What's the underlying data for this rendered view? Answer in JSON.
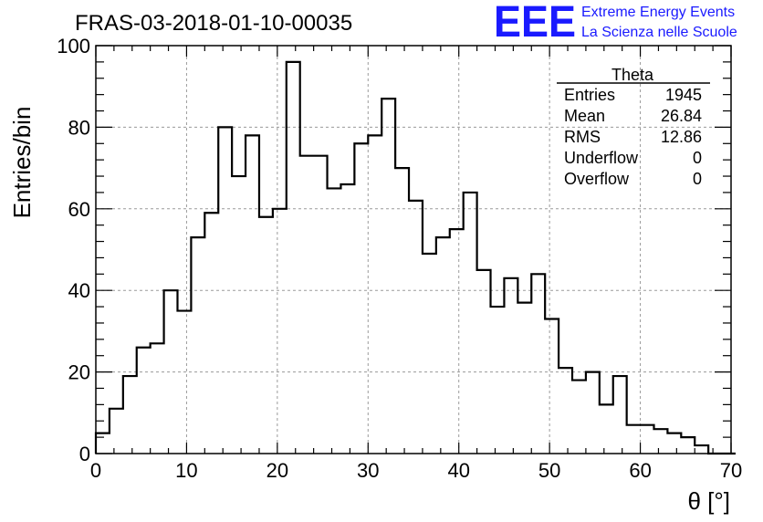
{
  "title": "FRAS-03-2018-01-10-00035",
  "logo": {
    "mark": "EEE",
    "line1": "Extreme Energy Events",
    "line2": "La Scienza nelle Scuole",
    "color": "#1a1aff"
  },
  "stats": {
    "name": "Theta",
    "rows": [
      {
        "label": "Entries",
        "value": "1945"
      },
      {
        "label": "Mean",
        "value": "26.84"
      },
      {
        "label": "RMS",
        "value": "12.86"
      },
      {
        "label": "Underflow",
        "value": "0"
      },
      {
        "label": "Overflow",
        "value": "0"
      }
    ]
  },
  "chart_data": {
    "type": "histogram",
    "title": "FRAS-03-2018-01-10-00035",
    "xlabel": "θ [°]",
    "ylabel": "Entries/bin",
    "xlim": [
      0,
      70
    ],
    "ylim": [
      0,
      100
    ],
    "xticks": [
      0,
      10,
      20,
      30,
      40,
      50,
      60,
      70
    ],
    "yticks": [
      0,
      20,
      40,
      60,
      80,
      100
    ],
    "grid": true,
    "bin_width": 1.5,
    "bin_edges_start": 0,
    "values": [
      5,
      11,
      19,
      26,
      27,
      40,
      35,
      53,
      59,
      80,
      68,
      78,
      58,
      60,
      96,
      73,
      73,
      65,
      66,
      76,
      78,
      87,
      70,
      62,
      49,
      53,
      55,
      64,
      45,
      36,
      43,
      37,
      44,
      33,
      21,
      18,
      20,
      12,
      19,
      7,
      7,
      6,
      5,
      4,
      2,
      0,
      0
    ]
  }
}
